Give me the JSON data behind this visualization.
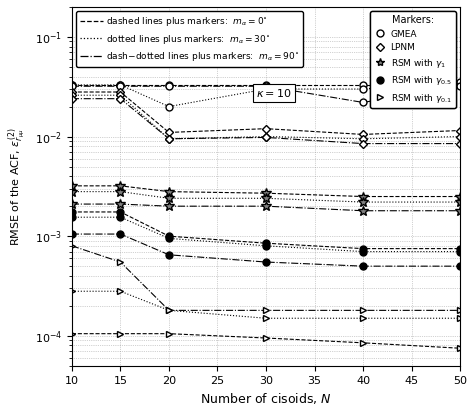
{
  "N": [
    10,
    15,
    20,
    30,
    40,
    50
  ],
  "xlabel": "Number of cisoids, $N$",
  "ylabel": "RMSE of the ACF, $\\epsilon_{r_{\\mu\\mu}}^{(2)}$",
  "kappa_label": "$\\kappa = 10$",
  "series": {
    "GMEA_dash": [
      0.033,
      0.033,
      0.033,
      0.033,
      0.033,
      0.033
    ],
    "GMEA_dot": [
      0.033,
      0.033,
      0.02,
      0.03,
      0.03,
      0.035
    ],
    "GMEA_dashdot": [
      0.032,
      0.032,
      0.032,
      0.032,
      0.022,
      0.032
    ],
    "LPNM_dash": [
      0.028,
      0.028,
      0.011,
      0.012,
      0.0105,
      0.0115
    ],
    "LPNM_dot": [
      0.026,
      0.026,
      0.0095,
      0.01,
      0.0095,
      0.01
    ],
    "LPNM_dashdot": [
      0.024,
      0.024,
      0.0095,
      0.0098,
      0.0085,
      0.0085
    ],
    "RSM1_dash": [
      0.0032,
      0.0032,
      0.0028,
      0.0027,
      0.0025,
      0.0025
    ],
    "RSM1_dot": [
      0.0028,
      0.0028,
      0.0024,
      0.0024,
      0.0022,
      0.0022
    ],
    "RSM1_dashdot": [
      0.0021,
      0.0021,
      0.002,
      0.002,
      0.0018,
      0.0018
    ],
    "RSM05_dash": [
      0.00175,
      0.00175,
      0.001,
      0.00085,
      0.00075,
      0.00075
    ],
    "RSM05_dot": [
      0.00155,
      0.00155,
      0.00095,
      0.0008,
      0.0007,
      0.0007
    ],
    "RSM05_dashdot": [
      0.00105,
      0.00105,
      0.00065,
      0.00055,
      0.0005,
      0.0005
    ],
    "RSM01_dash": [
      0.000105,
      0.000105,
      0.000105,
      9.5e-05,
      8.5e-05,
      7.5e-05
    ],
    "RSM01_dot": [
      0.00028,
      0.00028,
      0.00018,
      0.00015,
      0.00015,
      0.00015
    ],
    "RSM01_dashdot": [
      0.0008,
      0.00055,
      0.00018,
      0.00018,
      0.00018,
      0.00018
    ]
  },
  "color": "black",
  "background": "white",
  "ylim": [
    5e-05,
    0.2
  ],
  "xlim": [
    10,
    50
  ]
}
